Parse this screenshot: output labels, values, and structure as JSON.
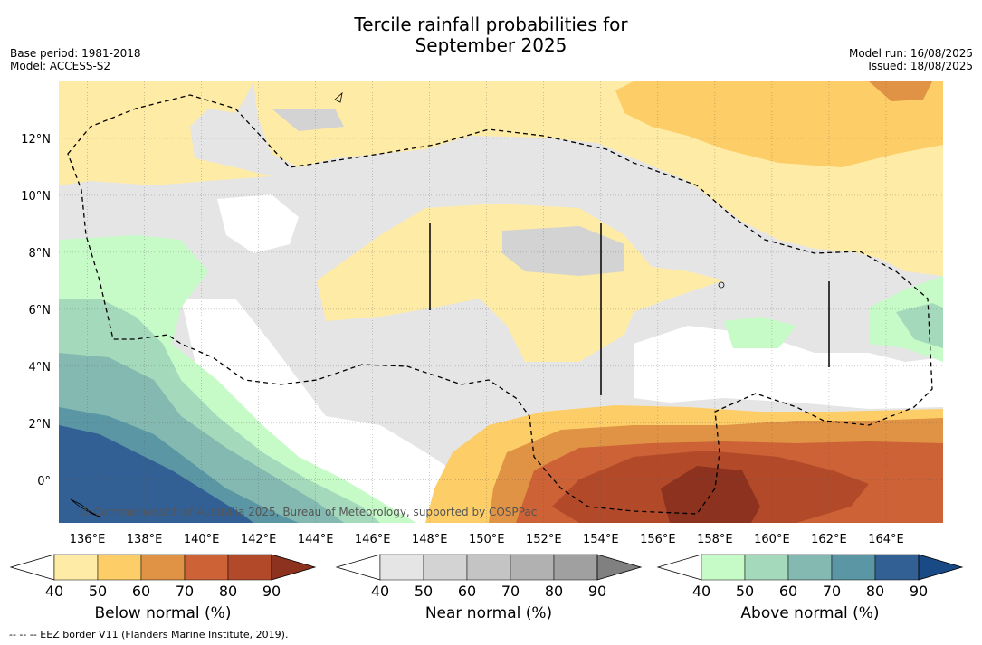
{
  "title_line1": "Tercile rainfall probabilities for",
  "title_line2": "September 2025",
  "base_period": "Base period: 1981-2018",
  "model": "Model: ACCESS-S2",
  "model_run": "Model run: 16/08/2025",
  "issued": "Issued: 18/08/2025",
  "copyright": "© Commonwealth of Australia 2025, Bureau of Meteorology, supported by COSPPac",
  "footnote": "--  --  -- EEZ border V11 (Flanders Marine Institute, 2019).",
  "map": {
    "lon_ticks": [
      "136°E",
      "138°E",
      "140°E",
      "142°E",
      "144°E",
      "146°E",
      "148°E",
      "150°E",
      "152°E",
      "154°E",
      "156°E",
      "158°E",
      "160°E",
      "162°E",
      "164°E"
    ],
    "lon_values": [
      136,
      138,
      140,
      142,
      144,
      146,
      148,
      150,
      152,
      154,
      156,
      158,
      160,
      162,
      164
    ],
    "lat_ticks": [
      "12°N",
      "10°N",
      "8°N",
      "6°N",
      "4°N",
      "2°N",
      "0°"
    ],
    "lat_values": [
      12,
      10,
      8,
      6,
      4,
      2,
      0
    ],
    "lon_range": [
      135.0,
      166.0
    ],
    "lat_range": [
      -1.5,
      14.0
    ]
  },
  "colorbars": [
    {
      "label": "Below normal (%)",
      "ticks": [
        "40",
        "50",
        "60",
        "70",
        "80",
        "90"
      ],
      "colors": [
        "#ffffff",
        "#feeba5",
        "#fdcd67",
        "#e09245",
        "#cc6235",
        "#b24a2a",
        "#8c321e"
      ]
    },
    {
      "label": "Near normal (%)",
      "ticks": [
        "40",
        "50",
        "60",
        "70",
        "80",
        "90"
      ],
      "colors": [
        "#ffffff",
        "#e5e5e5",
        "#d3d3d3",
        "#c4c4c4",
        "#b1b1b1",
        "#a0a0a0",
        "#808080"
      ]
    },
    {
      "label": "Above normal (%)",
      "ticks": [
        "40",
        "50",
        "60",
        "70",
        "80",
        "90"
      ],
      "colors": [
        "#ffffff",
        "#c6fbc8",
        "#a4d9bc",
        "#83b9b0",
        "#5b96a4",
        "#336094",
        "#1a4a85"
      ]
    }
  ]
}
